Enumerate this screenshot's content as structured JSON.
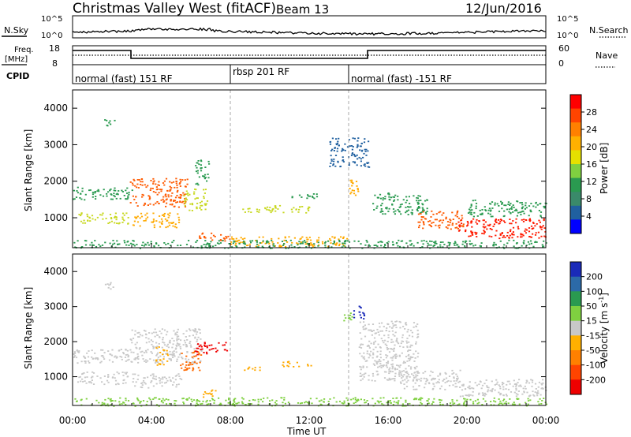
{
  "header": {
    "station": "Christmas Valley West (fitACF)",
    "beam": "Beam 13",
    "date": "12/Jun/2016"
  },
  "top_panel": {
    "left_label": "N.Sky",
    "left_ticks": [
      "10^5",
      "10^0"
    ],
    "right_label": "N.Search",
    "right_ticks": [
      "10^5",
      "10^0"
    ]
  },
  "freq_panel": {
    "left_label_1": "Freq.",
    "left_label_2": "[MHz]",
    "left_ticks": [
      "18",
      "8"
    ],
    "right_label": "Nave",
    "right_ticks": [
      "60",
      "0"
    ]
  },
  "cpid": {
    "label": "CPID",
    "segments": [
      {
        "text": "normal (fast) 151 RF",
        "start_hour": 0
      },
      {
        "text": "rbsp 201 RF",
        "start_hour": 8
      },
      {
        "text": "normal (fast) -151 RF",
        "start_hour": 14
      }
    ]
  },
  "axes": {
    "ylabel": "Slant Range [km]",
    "yticks": [
      1000,
      2000,
      3000,
      4000
    ],
    "xticks": [
      "00:00",
      "04:00",
      "08:00",
      "12:00",
      "16:00",
      "20:00",
      "00:00"
    ],
    "xlabel": "Time UT",
    "xlim_hours": [
      0,
      24
    ],
    "ylim_km": [
      180,
      4500
    ]
  },
  "colorbars": {
    "power": {
      "label": "Power [dB]",
      "ticks": [
        "28",
        "24",
        "20",
        "16",
        "12",
        "8",
        "4"
      ],
      "colors": [
        "#ff0000",
        "#ff4400",
        "#ff8000",
        "#ffb000",
        "#e6e000",
        "#7fd040",
        "#2a9a50",
        "#3a8a6a",
        "#2060a0",
        "#0000ff"
      ]
    },
    "velocity": {
      "label_main": "Velocity [m s",
      "label_sup": "-1",
      "label_end": "]",
      "ticks": [
        "200",
        "100",
        "50",
        "15",
        "-15",
        "-50",
        "-100",
        "-200"
      ],
      "colors": [
        "#1a2ab8",
        "#2c6aa8",
        "#2a9a50",
        "#7fd040",
        "#c8c8c8",
        "#ffb000",
        "#ff8000",
        "#ff4400",
        "#ee0000"
      ]
    }
  },
  "chart_data": [
    {
      "type": "heatmap",
      "title": "Power",
      "xlabel": "Time UT",
      "ylabel": "Slant Range [km]",
      "xlim": [
        0,
        24
      ],
      "ylim": [
        180,
        4500
      ],
      "regions": [
        {
          "t0": 0.0,
          "t1": 3.0,
          "r0": 1500,
          "r1": 1850,
          "level": "12"
        },
        {
          "t0": 0.2,
          "t1": 2.8,
          "r0": 850,
          "r1": 1150,
          "level": "16"
        },
        {
          "t0": 1.6,
          "t1": 2.1,
          "r0": 3450,
          "r1": 3700,
          "level": "12"
        },
        {
          "t0": 2.9,
          "t1": 5.8,
          "r0": 1300,
          "r1": 2100,
          "level": "24"
        },
        {
          "t0": 3.0,
          "t1": 5.4,
          "r0": 750,
          "r1": 1150,
          "level": "20"
        },
        {
          "t0": 5.6,
          "t1": 6.8,
          "r0": 1200,
          "r1": 1800,
          "level": "16"
        },
        {
          "t0": 6.2,
          "t1": 6.9,
          "r0": 1900,
          "r1": 2600,
          "level": "12"
        },
        {
          "t0": 6.4,
          "t1": 8.0,
          "r0": 350,
          "r1": 600,
          "level": "24"
        },
        {
          "t0": 8.0,
          "t1": 14.0,
          "r0": 220,
          "r1": 500,
          "level": "20"
        },
        {
          "t0": 8.5,
          "t1": 12.0,
          "r0": 1150,
          "r1": 1350,
          "level": "16"
        },
        {
          "t0": 11.0,
          "t1": 12.5,
          "r0": 1550,
          "r1": 1700,
          "level": "12"
        },
        {
          "t0": 13.0,
          "t1": 15.0,
          "r0": 2400,
          "r1": 3200,
          "level": "8"
        },
        {
          "t0": 14.0,
          "t1": 14.6,
          "r0": 1600,
          "r1": 2100,
          "level": "20"
        },
        {
          "t0": 15.2,
          "t1": 18.0,
          "r0": 1100,
          "r1": 1700,
          "level": "12"
        },
        {
          "t0": 17.5,
          "t1": 19.8,
          "r0": 700,
          "r1": 1200,
          "level": "24"
        },
        {
          "t0": 19.5,
          "t1": 24.0,
          "r0": 450,
          "r1": 1000,
          "level": "28"
        },
        {
          "t0": 20.0,
          "t1": 24.0,
          "r0": 1050,
          "r1": 1500,
          "level": "12"
        },
        {
          "t0": 0.0,
          "t1": 24.0,
          "r0": 180,
          "r1": 400,
          "level": "12"
        }
      ]
    },
    {
      "type": "heatmap",
      "title": "Velocity",
      "xlabel": "Time UT",
      "ylabel": "Slant Range [km]",
      "xlim": [
        0,
        24
      ],
      "ylim": [
        180,
        4500
      ],
      "regions": [
        {
          "t0": 0.0,
          "t1": 3.0,
          "r0": 1400,
          "r1": 1800,
          "level": "-15"
        },
        {
          "t0": 0.2,
          "t1": 2.8,
          "r0": 800,
          "r1": 1150,
          "level": "-15"
        },
        {
          "t0": 1.6,
          "t1": 2.1,
          "r0": 3450,
          "r1": 3700,
          "level": "-15"
        },
        {
          "t0": 2.9,
          "t1": 6.5,
          "r0": 1400,
          "r1": 2400,
          "level": "-15"
        },
        {
          "t0": 3.0,
          "t1": 5.5,
          "r0": 700,
          "r1": 1100,
          "level": "-15"
        },
        {
          "t0": 4.2,
          "t1": 4.8,
          "r0": 1350,
          "r1": 1900,
          "level": "-50"
        },
        {
          "t0": 5.4,
          "t1": 6.6,
          "r0": 1200,
          "r1": 1750,
          "level": "-100"
        },
        {
          "t0": 6.2,
          "t1": 7.8,
          "r0": 1650,
          "r1": 2000,
          "level": "-200"
        },
        {
          "t0": 6.6,
          "t1": 7.4,
          "r0": 400,
          "r1": 650,
          "level": "-50"
        },
        {
          "t0": 8.6,
          "t1": 9.6,
          "r0": 1200,
          "r1": 1350,
          "level": "-50"
        },
        {
          "t0": 10.6,
          "t1": 12.2,
          "r0": 1300,
          "r1": 1450,
          "level": "-50"
        },
        {
          "t0": 13.6,
          "t1": 14.2,
          "r0": 2600,
          "r1": 2900,
          "level": "15"
        },
        {
          "t0": 14.2,
          "t1": 14.8,
          "r0": 2650,
          "r1": 3050,
          "level": "200"
        },
        {
          "t0": 14.5,
          "t1": 17.5,
          "r0": 900,
          "r1": 2600,
          "level": "-15"
        },
        {
          "t0": 16.5,
          "t1": 19.8,
          "r0": 650,
          "r1": 1200,
          "level": "-15"
        },
        {
          "t0": 19.5,
          "t1": 24.0,
          "r0": 450,
          "r1": 950,
          "level": "-15"
        },
        {
          "t0": 0.0,
          "t1": 24.0,
          "r0": 180,
          "r1": 420,
          "level": "15"
        }
      ]
    }
  ]
}
